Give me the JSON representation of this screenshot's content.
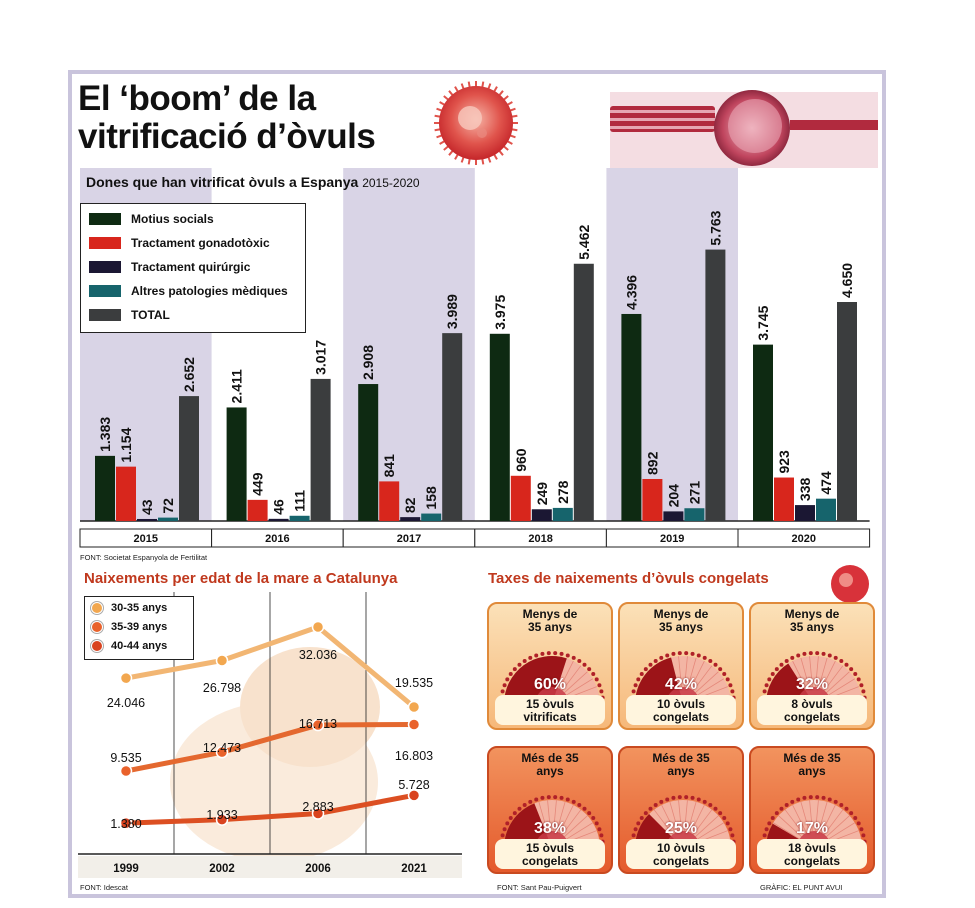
{
  "title": {
    "line1": "El ‘boom’ de la",
    "line2": "vitrificació d’òvuls"
  },
  "subtitle": {
    "main": "Dones que han vitrificat òvuls a Espanya",
    "years": "2015-2020"
  },
  "source1": "FONT: Societat Espanyola de Fertilitat",
  "source2": "FONT: Idescat",
  "source3": "FONT: Sant Pau-Puigvert",
  "credit": "GRÀFIC: EL PUNT AVUI",
  "colors": {
    "social": "#0e2a12",
    "gonado": "#d8261c",
    "quirurgic": "#1b1733",
    "altres": "#16646c",
    "total": "#3b3d3e",
    "shade": "#d9d4e6",
    "accent": "#c0391e"
  },
  "chart_data": [
    {
      "type": "bar",
      "title": "Dones que han vitrificat òvuls a Espanya 2015-2020",
      "categories": [
        "2015",
        "2016",
        "2017",
        "2018",
        "2019",
        "2020"
      ],
      "series": [
        {
          "name": "Motius socials",
          "labels": [
            "1.383",
            "2.411",
            "2.908",
            "3.975",
            "4.396",
            "3.745"
          ],
          "values": [
            1383,
            2411,
            2908,
            3975,
            4396,
            3745
          ]
        },
        {
          "name": "Tractament gonadotòxic",
          "labels": [
            "1.154",
            "449",
            "841",
            "960",
            "892",
            "923"
          ],
          "values": [
            1154,
            449,
            841,
            960,
            892,
            923
          ]
        },
        {
          "name": "Tractament quirurgic",
          "labels": [
            "43",
            "46",
            "82",
            "249",
            "204",
            "338"
          ],
          "values": [
            43,
            46,
            82,
            249,
            204,
            338
          ]
        },
        {
          "name": "Altres patologies mèdiques",
          "labels": [
            "72",
            "111",
            "158",
            "278",
            "271",
            "474"
          ],
          "values": [
            72,
            111,
            158,
            278,
            271,
            474
          ]
        },
        {
          "name": "TOTAL",
          "labels": [
            "2.652",
            "3.017",
            "3.989",
            "5.462",
            "5.763",
            "4.650"
          ],
          "values": [
            2652,
            3017,
            3989,
            5462,
            5763,
            4650
          ]
        }
      ],
      "legend_labels": [
        "Motius socials",
        "Tractament gonadotòxic",
        "Tractament quirúrgic",
        "Altres patologies mèdiques",
        "TOTAL"
      ],
      "legend": "top-left",
      "ylim": [
        0,
        6200
      ]
    },
    {
      "type": "line",
      "title": "Naixements per edat de la mare a Catalunya",
      "categories": [
        "1999",
        "2002",
        "2006",
        "2021"
      ],
      "series": [
        {
          "name": "30-35 anys",
          "labels": [
            "24.046",
            "26.798",
            "32.036",
            "19.535"
          ],
          "values": [
            24046,
            26798,
            32036,
            19535
          ]
        },
        {
          "name": "35-39 anys",
          "labels": [
            "9.535",
            "12.473",
            "16.713",
            "16.803"
          ],
          "values": [
            9535,
            12473,
            16713,
            16803
          ]
        },
        {
          "name": "40-44 anys",
          "labels": [
            "1.380",
            "1.933",
            "2.883",
            "5.728"
          ],
          "values": [
            1380,
            1933,
            2883,
            5728
          ]
        }
      ],
      "legend": "top-left"
    },
    {
      "type": "pie",
      "title": "Taxes de naixements d’òvuls congelats",
      "cards": [
        {
          "head1": "Menys de",
          "head2": "35 anys",
          "pct": 60,
          "pct_label": "60%",
          "foot1": "15 òvuls",
          "foot2": "vitrificats",
          "group": "top"
        },
        {
          "head1": "Menys de",
          "head2": "35 anys",
          "pct": 42,
          "pct_label": "42%",
          "foot1": "10 òvuls",
          "foot2": "congelats",
          "group": "top"
        },
        {
          "head1": "Menys de",
          "head2": "35 anys",
          "pct": 32,
          "pct_label": "32%",
          "foot1": "8 òvuls",
          "foot2": "congelats",
          "group": "top"
        },
        {
          "head1": "Més de 35",
          "head2": "anys",
          "pct": 38,
          "pct_label": "38%",
          "foot1": "15 òvuls",
          "foot2": "congelats",
          "group": "bot"
        },
        {
          "head1": "Més de 35",
          "head2": "anys",
          "pct": 25,
          "pct_label": "25%",
          "foot1": "10 òvuls",
          "foot2": "congelats",
          "group": "bot"
        },
        {
          "head1": "Més de 35",
          "head2": "anys",
          "pct": 17,
          "pct_label": "17%",
          "foot1": "18 òvuls",
          "foot2": "congelats",
          "group": "bot"
        }
      ]
    }
  ]
}
